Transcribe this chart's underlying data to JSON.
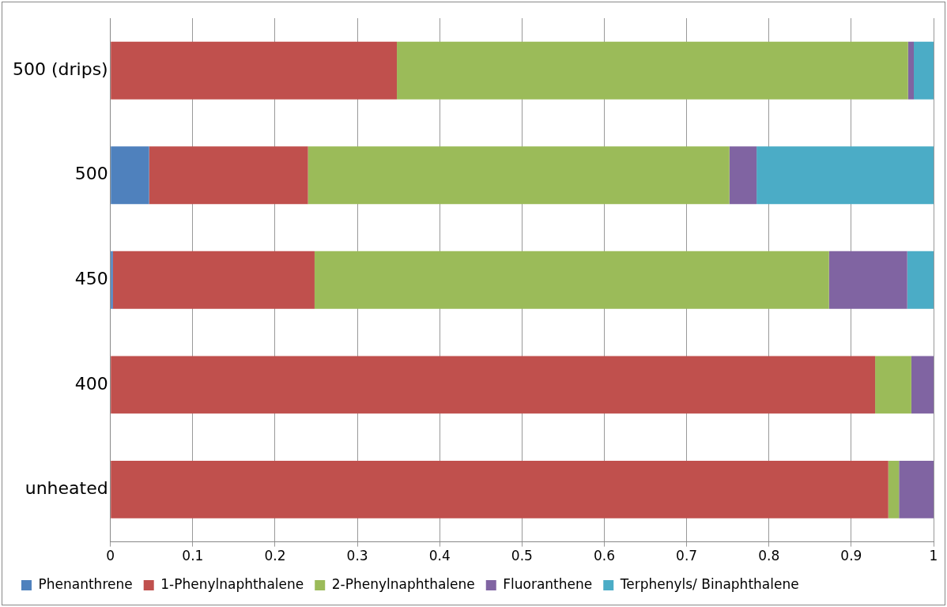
{
  "chart_data": {
    "type": "bar",
    "orientation": "horizontal",
    "stacked": true,
    "categories": [
      "500 (drips)",
      "500",
      "450",
      "400",
      "unheated"
    ],
    "series": [
      {
        "name": "Phenanthrene",
        "color": "#4f81bd",
        "values": [
          0,
          0.047,
          0.003,
          0,
          0
        ]
      },
      {
        "name": "1-Phenylnaphthalene",
        "color": "#c0504d",
        "values": [
          0.348,
          0.193,
          0.245,
          0.929,
          0.945
        ]
      },
      {
        "name": "2-Phenylnaphthalene",
        "color": "#9bbb59",
        "values": [
          0.621,
          0.512,
          0.625,
          0.044,
          0.013
        ]
      },
      {
        "name": "Fluoranthene",
        "color": "#8064a2",
        "values": [
          0.007,
          0.033,
          0.095,
          0.027,
          0.042
        ]
      },
      {
        "name": "Terphenyls/ Binaphthalene",
        "color": "#4bacc6",
        "values": [
          0.024,
          0.215,
          0.032,
          0,
          0
        ]
      }
    ],
    "xlim": [
      0,
      1
    ],
    "xticks": [
      0,
      0.1,
      0.2,
      0.3,
      0.4,
      0.5,
      0.6,
      0.7,
      0.8,
      0.9,
      1
    ],
    "grid": "x",
    "legend": "bottom"
  }
}
